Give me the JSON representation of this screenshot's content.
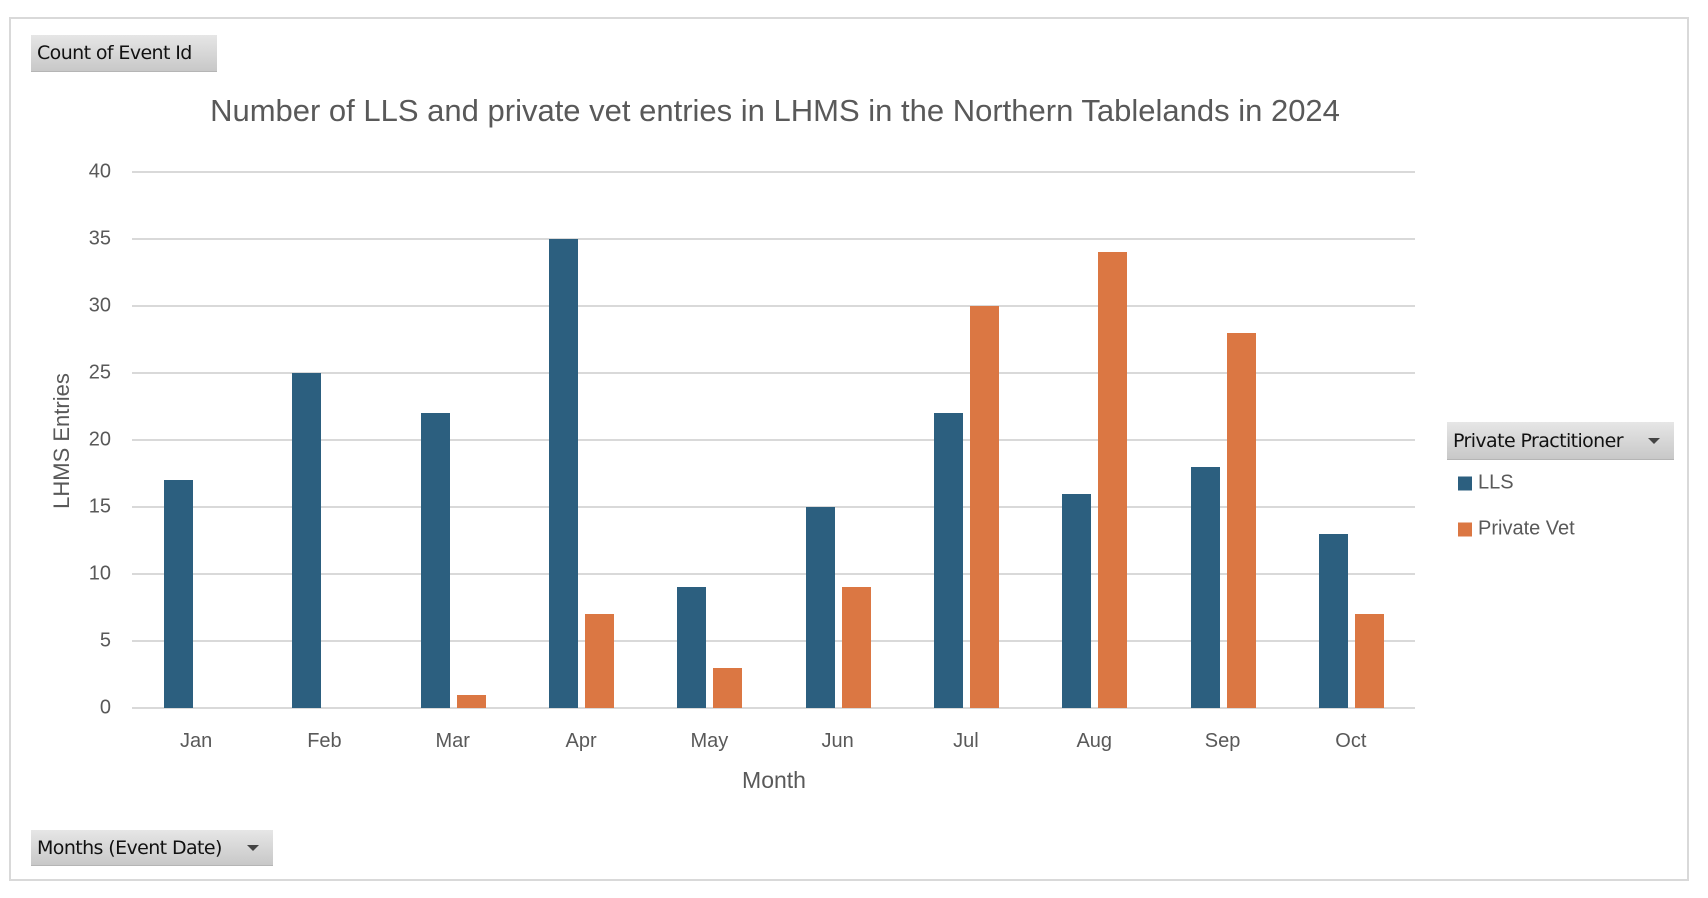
{
  "field_buttons": {
    "values_field": "Count of Event Id",
    "legend_field": "Private Practitioner",
    "axis_field": "Months (Event Date)"
  },
  "colors": {
    "lls": "#2c5f7f",
    "private_vet": "#db7743",
    "gridline": "#d9d9d9",
    "text": "#595959"
  },
  "chart_data": {
    "type": "bar",
    "title": "Number of LLS and private vet entries in LHMS in the Northern Tablelands in 2024",
    "xlabel": "Month",
    "ylabel": "LHMS Entries",
    "ylim": [
      0,
      40
    ],
    "yticks": [
      0,
      5,
      10,
      15,
      20,
      25,
      30,
      35,
      40
    ],
    "grid": true,
    "legend_position": "right",
    "legend_title": "Private Practitioner",
    "categories": [
      "Jan",
      "Feb",
      "Mar",
      "Apr",
      "May",
      "Jun",
      "Jul",
      "Aug",
      "Sep",
      "Oct"
    ],
    "series": [
      {
        "name": "LLS",
        "color": "#2c5f7f",
        "values": [
          17,
          25,
          22,
          35,
          9,
          15,
          22,
          16,
          18,
          13
        ]
      },
      {
        "name": "Private Vet",
        "color": "#db7743",
        "values": [
          0,
          0,
          1,
          7,
          3,
          9,
          30,
          34,
          28,
          7
        ]
      }
    ]
  }
}
